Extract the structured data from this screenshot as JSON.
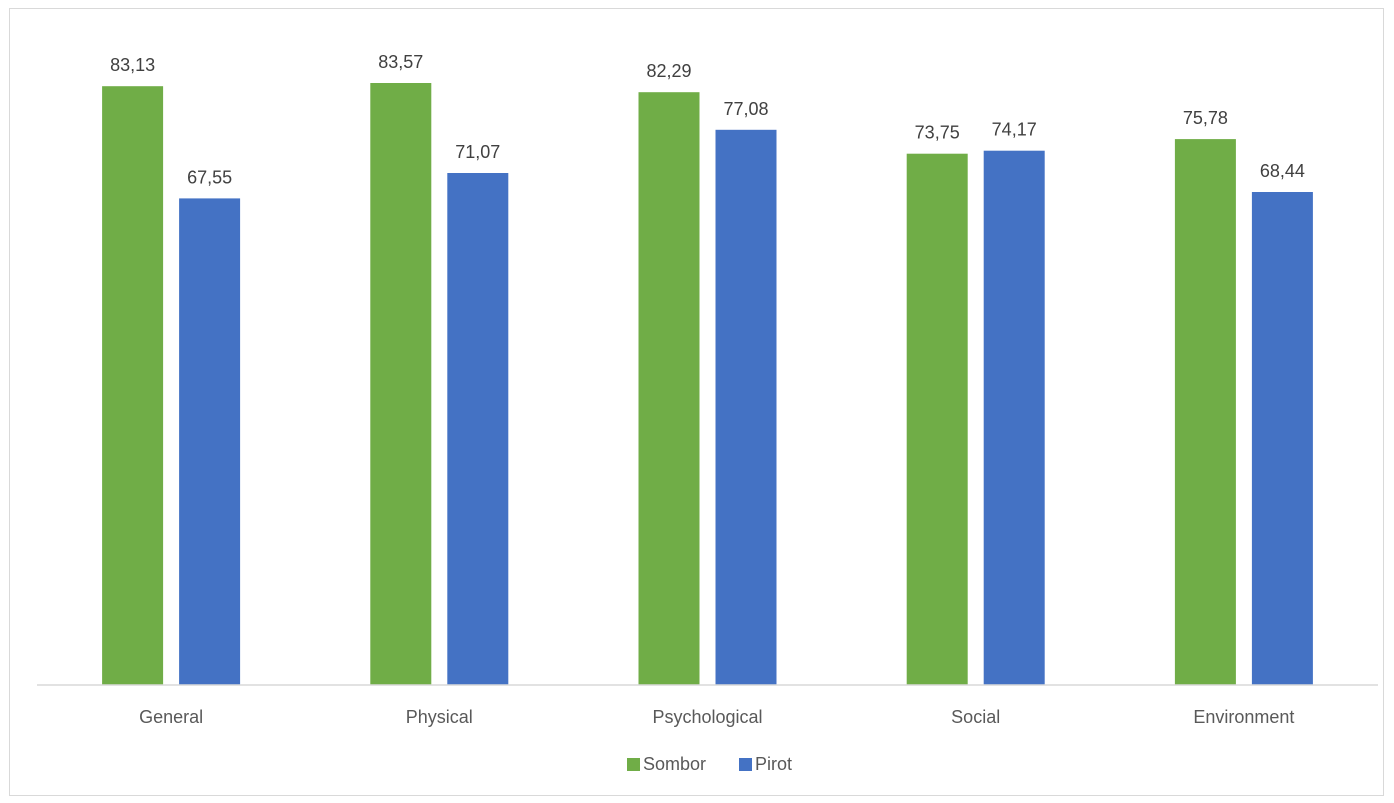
{
  "chart_data": {
    "type": "bar",
    "categories": [
      "General",
      "Physical",
      "Psychological",
      "Social",
      "Environment"
    ],
    "series": [
      {
        "name": "Sombor",
        "values": [
          83.13,
          83.57,
          82.29,
          73.75,
          75.78
        ],
        "labels": [
          "83,13",
          "83,57",
          "82,29",
          "73,75",
          "75,78"
        ],
        "color": "#70ad47"
      },
      {
        "name": "Pirot",
        "values": [
          67.55,
          71.07,
          77.08,
          74.17,
          68.44
        ],
        "labels": [
          "67,55",
          "71,07",
          "77,08",
          "74,17",
          "68,44"
        ],
        "color": "#4472c4"
      }
    ],
    "title": "",
    "xlabel": "",
    "ylabel": "",
    "ylim": [
      0,
      83.57
    ],
    "grid": false,
    "legend": "bottom"
  }
}
